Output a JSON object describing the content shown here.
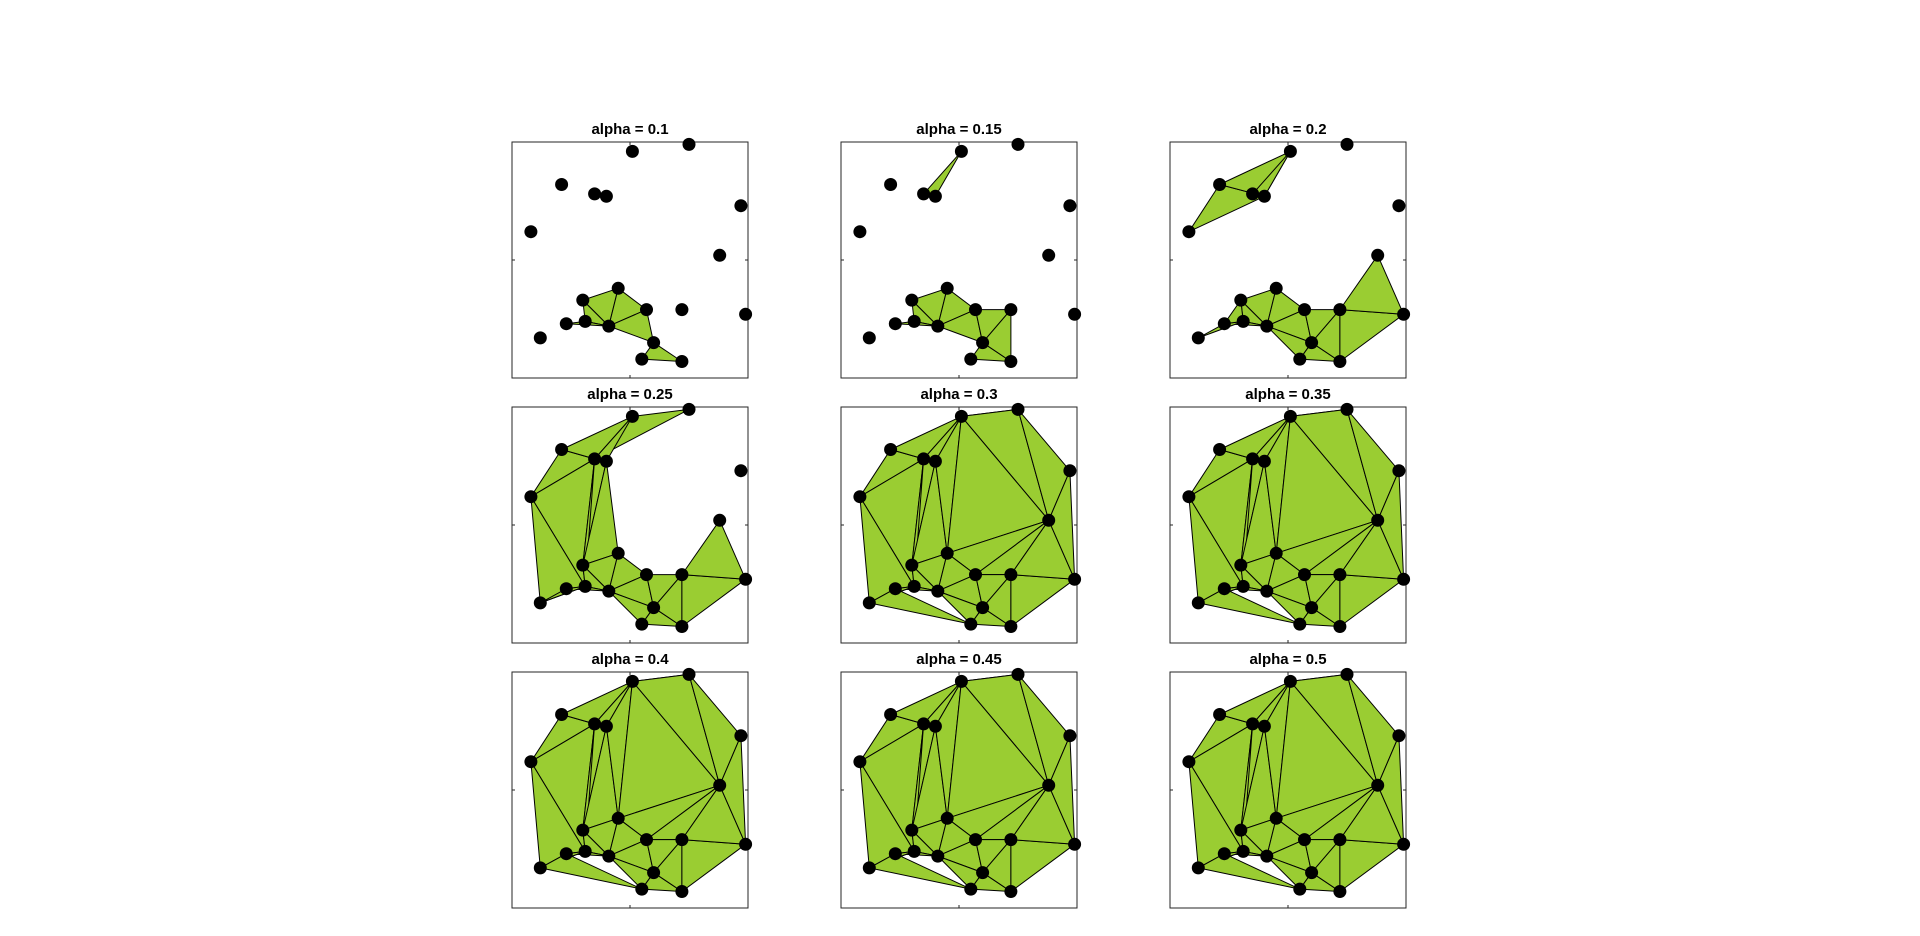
{
  "chart_data": {
    "type": "scatter",
    "layout": "3x3 subplot grid",
    "fill_color": "#9acd32",
    "edge_color": "#000000",
    "marker_color": "#000000",
    "grid": false,
    "xlim": [
      0,
      1
    ],
    "ylim": [
      0,
      1
    ],
    "points": [
      [
        0.08,
        0.62
      ],
      [
        0.21,
        0.82
      ],
      [
        0.35,
        0.78
      ],
      [
        0.4,
        0.77
      ],
      [
        0.51,
        0.96
      ],
      [
        0.75,
        0.99
      ],
      [
        0.97,
        0.73
      ],
      [
        0.88,
        0.52
      ],
      [
        0.99,
        0.27
      ],
      [
        0.12,
        0.17
      ],
      [
        0.3,
        0.33
      ],
      [
        0.45,
        0.38
      ],
      [
        0.57,
        0.29
      ],
      [
        0.72,
        0.29
      ],
      [
        0.6,
        0.15
      ],
      [
        0.72,
        0.07
      ],
      [
        0.55,
        0.08
      ],
      [
        0.41,
        0.22
      ],
      [
        0.31,
        0.24
      ],
      [
        0.23,
        0.23
      ]
    ],
    "panels": [
      {
        "title": "alpha = 0.1",
        "triangles": [
          [
            10,
            11,
            17
          ],
          [
            10,
            17,
            18
          ],
          [
            11,
            12,
            17
          ],
          [
            17,
            18,
            19
          ],
          [
            12,
            14,
            17
          ],
          [
            14,
            15,
            16
          ]
        ]
      },
      {
        "title": "alpha = 0.15",
        "triangles": [
          [
            2,
            3,
            4
          ],
          [
            10,
            11,
            17
          ],
          [
            10,
            17,
            18
          ],
          [
            11,
            12,
            17
          ],
          [
            12,
            14,
            17
          ],
          [
            17,
            18,
            19
          ],
          [
            14,
            15,
            16
          ],
          [
            12,
            13,
            14
          ],
          [
            13,
            14,
            15
          ]
        ]
      },
      {
        "title": "alpha = 0.2",
        "triangles": [
          [
            0,
            1,
            3
          ],
          [
            1,
            3,
            4
          ],
          [
            2,
            3,
            4
          ],
          [
            10,
            11,
            17
          ],
          [
            10,
            17,
            18
          ],
          [
            11,
            12,
            17
          ],
          [
            12,
            14,
            17
          ],
          [
            17,
            18,
            19
          ],
          [
            14,
            15,
            16
          ],
          [
            12,
            13,
            14
          ],
          [
            13,
            14,
            15
          ],
          [
            9,
            18,
            19
          ],
          [
            10,
            18,
            19
          ],
          [
            13,
            8,
            15
          ],
          [
            13,
            7,
            8
          ],
          [
            16,
            17,
            14
          ]
        ]
      },
      {
        "title": "alpha = 0.25",
        "triangles": [
          [
            0,
            1,
            2
          ],
          [
            1,
            2,
            4
          ],
          [
            2,
            4,
            5
          ],
          [
            2,
            3,
            4
          ],
          [
            0,
            2,
            18
          ],
          [
            0,
            18,
            9
          ],
          [
            2,
            3,
            10
          ],
          [
            2,
            10,
            18
          ],
          [
            3,
            10,
            11
          ],
          [
            10,
            11,
            17
          ],
          [
            10,
            17,
            18
          ],
          [
            11,
            12,
            17
          ],
          [
            12,
            14,
            17
          ],
          [
            17,
            18,
            19
          ],
          [
            14,
            15,
            16
          ],
          [
            12,
            13,
            14
          ],
          [
            13,
            14,
            15
          ],
          [
            9,
            18,
            19
          ],
          [
            13,
            8,
            15
          ],
          [
            13,
            7,
            8
          ],
          [
            16,
            17,
            14
          ]
        ]
      },
      {
        "title": "alpha = 0.3",
        "triangles": [
          [
            0,
            1,
            2
          ],
          [
            1,
            2,
            4
          ],
          [
            2,
            4,
            5
          ],
          [
            2,
            3,
            4
          ],
          [
            0,
            2,
            18
          ],
          [
            0,
            18,
            9
          ],
          [
            2,
            3,
            10
          ],
          [
            2,
            10,
            18
          ],
          [
            3,
            10,
            11
          ],
          [
            3,
            4,
            11
          ],
          [
            4,
            5,
            7
          ],
          [
            4,
            7,
            11
          ],
          [
            11,
            7,
            12
          ],
          [
            12,
            7,
            13
          ],
          [
            10,
            11,
            17
          ],
          [
            10,
            17,
            18
          ],
          [
            11,
            12,
            17
          ],
          [
            12,
            14,
            17
          ],
          [
            17,
            18,
            19
          ],
          [
            14,
            15,
            16
          ],
          [
            12,
            13,
            14
          ],
          [
            13,
            14,
            15
          ],
          [
            9,
            18,
            19
          ],
          [
            9,
            19,
            16
          ],
          [
            13,
            8,
            15
          ],
          [
            13,
            7,
            8
          ],
          [
            16,
            17,
            14
          ],
          [
            5,
            6,
            7
          ],
          [
            6,
            7,
            8
          ]
        ]
      },
      {
        "title": "alpha = 0.35",
        "triangles": [
          [
            0,
            1,
            2
          ],
          [
            1,
            2,
            4
          ],
          [
            2,
            4,
            5
          ],
          [
            2,
            3,
            4
          ],
          [
            0,
            2,
            18
          ],
          [
            0,
            18,
            9
          ],
          [
            2,
            3,
            10
          ],
          [
            2,
            10,
            18
          ],
          [
            3,
            10,
            11
          ],
          [
            3,
            4,
            11
          ],
          [
            4,
            5,
            7
          ],
          [
            4,
            7,
            11
          ],
          [
            11,
            7,
            12
          ],
          [
            12,
            7,
            13
          ],
          [
            10,
            11,
            17
          ],
          [
            10,
            17,
            18
          ],
          [
            11,
            12,
            17
          ],
          [
            12,
            14,
            17
          ],
          [
            17,
            18,
            19
          ],
          [
            14,
            15,
            16
          ],
          [
            12,
            13,
            14
          ],
          [
            13,
            14,
            15
          ],
          [
            9,
            18,
            19
          ],
          [
            9,
            19,
            16
          ],
          [
            13,
            8,
            15
          ],
          [
            13,
            7,
            8
          ],
          [
            16,
            17,
            14
          ],
          [
            5,
            6,
            7
          ],
          [
            6,
            7,
            8
          ]
        ]
      },
      {
        "title": "alpha = 0.4",
        "triangles": [
          [
            0,
            1,
            2
          ],
          [
            1,
            2,
            4
          ],
          [
            2,
            4,
            5
          ],
          [
            2,
            3,
            4
          ],
          [
            0,
            2,
            18
          ],
          [
            0,
            18,
            9
          ],
          [
            2,
            3,
            10
          ],
          [
            2,
            10,
            18
          ],
          [
            3,
            10,
            11
          ],
          [
            3,
            4,
            11
          ],
          [
            4,
            5,
            7
          ],
          [
            4,
            7,
            11
          ],
          [
            11,
            7,
            12
          ],
          [
            12,
            7,
            13
          ],
          [
            10,
            11,
            17
          ],
          [
            10,
            17,
            18
          ],
          [
            11,
            12,
            17
          ],
          [
            12,
            14,
            17
          ],
          [
            17,
            18,
            19
          ],
          [
            14,
            15,
            16
          ],
          [
            12,
            13,
            14
          ],
          [
            13,
            14,
            15
          ],
          [
            9,
            18,
            19
          ],
          [
            9,
            19,
            16
          ],
          [
            13,
            8,
            15
          ],
          [
            13,
            7,
            8
          ],
          [
            16,
            17,
            14
          ],
          [
            5,
            6,
            7
          ],
          [
            6,
            7,
            8
          ]
        ]
      },
      {
        "title": "alpha = 0.45",
        "triangles": [
          [
            0,
            1,
            2
          ],
          [
            1,
            2,
            4
          ],
          [
            2,
            4,
            5
          ],
          [
            2,
            3,
            4
          ],
          [
            0,
            2,
            18
          ],
          [
            0,
            18,
            9
          ],
          [
            2,
            3,
            10
          ],
          [
            2,
            10,
            18
          ],
          [
            3,
            10,
            11
          ],
          [
            3,
            4,
            11
          ],
          [
            4,
            5,
            7
          ],
          [
            4,
            7,
            11
          ],
          [
            11,
            7,
            12
          ],
          [
            12,
            7,
            13
          ],
          [
            10,
            11,
            17
          ],
          [
            10,
            17,
            18
          ],
          [
            11,
            12,
            17
          ],
          [
            12,
            14,
            17
          ],
          [
            17,
            18,
            19
          ],
          [
            14,
            15,
            16
          ],
          [
            12,
            13,
            14
          ],
          [
            13,
            14,
            15
          ],
          [
            9,
            18,
            19
          ],
          [
            9,
            19,
            16
          ],
          [
            13,
            8,
            15
          ],
          [
            13,
            7,
            8
          ],
          [
            16,
            17,
            14
          ],
          [
            5,
            6,
            7
          ],
          [
            6,
            7,
            8
          ]
        ]
      },
      {
        "title": "alpha = 0.5",
        "triangles": [
          [
            0,
            1,
            2
          ],
          [
            1,
            2,
            4
          ],
          [
            2,
            4,
            5
          ],
          [
            2,
            3,
            4
          ],
          [
            0,
            2,
            18
          ],
          [
            0,
            18,
            9
          ],
          [
            2,
            3,
            10
          ],
          [
            2,
            10,
            18
          ],
          [
            3,
            10,
            11
          ],
          [
            3,
            4,
            11
          ],
          [
            4,
            5,
            7
          ],
          [
            4,
            7,
            11
          ],
          [
            11,
            7,
            12
          ],
          [
            12,
            7,
            13
          ],
          [
            10,
            11,
            17
          ],
          [
            10,
            17,
            18
          ],
          [
            11,
            12,
            17
          ],
          [
            12,
            14,
            17
          ],
          [
            17,
            18,
            19
          ],
          [
            14,
            15,
            16
          ],
          [
            12,
            13,
            14
          ],
          [
            13,
            14,
            15
          ],
          [
            9,
            18,
            19
          ],
          [
            9,
            19,
            16
          ],
          [
            13,
            8,
            15
          ],
          [
            13,
            7,
            8
          ],
          [
            16,
            17,
            14
          ],
          [
            5,
            6,
            7
          ],
          [
            6,
            7,
            8
          ]
        ]
      }
    ]
  }
}
